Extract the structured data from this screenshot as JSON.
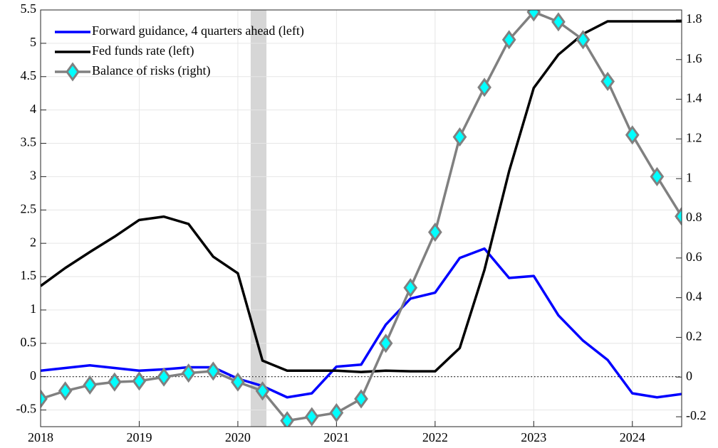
{
  "chart_data": {
    "type": "line",
    "x": [
      2018.0,
      2018.25,
      2018.5,
      2018.75,
      2019.0,
      2019.25,
      2019.5,
      2019.75,
      2020.0,
      2020.25,
      2020.5,
      2020.75,
      2021.0,
      2021.25,
      2021.5,
      2021.75,
      2022.0,
      2022.25,
      2022.5,
      2022.75,
      2023.0,
      2023.25,
      2023.5,
      2023.75,
      2024.0,
      2024.25,
      2024.5
    ],
    "series": [
      {
        "name": "Forward guidance, 4 quarters ahead (left)",
        "color": "#0000ff",
        "axis": "y",
        "values": [
          0.09,
          0.13,
          0.17,
          0.13,
          0.09,
          0.11,
          0.14,
          0.14,
          -0.03,
          -0.14,
          -0.31,
          -0.25,
          0.15,
          0.18,
          0.78,
          1.17,
          1.26,
          1.78,
          1.92,
          1.48,
          1.51,
          0.92,
          0.54,
          0.25,
          -0.25,
          -0.31,
          -0.26
        ]
      },
      {
        "name": "Fed funds rate (left)",
        "color": "#000000",
        "axis": "y",
        "values": [
          1.36,
          1.63,
          1.87,
          2.1,
          2.35,
          2.4,
          2.29,
          1.8,
          1.55,
          0.24,
          0.09,
          0.09,
          0.09,
          0.07,
          0.09,
          0.08,
          0.08,
          0.43,
          1.6,
          3.08,
          4.33,
          4.83,
          5.14,
          5.33,
          5.33,
          5.33,
          5.33
        ]
      },
      {
        "name": "Balance of risks (right)",
        "color": "#808080",
        "marker_color": "#00ffff",
        "axis": "y2",
        "values": [
          -0.11,
          -0.07,
          -0.04,
          -0.025,
          -0.02,
          0.0,
          0.02,
          0.03,
          -0.025,
          -0.07,
          -0.22,
          -0.2,
          -0.18,
          -0.11,
          0.17,
          0.45,
          0.73,
          1.21,
          1.46,
          1.7,
          1.84,
          1.79,
          1.7,
          1.49,
          1.22,
          1.01,
          0.81
        ]
      }
    ],
    "xlim": [
      2018,
      2024.5
    ],
    "xticks": [
      2018,
      2019,
      2020,
      2021,
      2022,
      2023,
      2024
    ],
    "ylim": [
      -0.75,
      5.5
    ],
    "yticks": [
      -0.5,
      0,
      0.5,
      1,
      1.5,
      2,
      2.5,
      3,
      3.5,
      4,
      4.5,
      5,
      5.5
    ],
    "y2lim": [
      -0.25,
      1.85
    ],
    "y2ticks": [
      -0.2,
      0,
      0.2,
      0.4,
      0.6,
      0.8,
      1,
      1.2,
      1.4,
      1.6,
      1.8
    ],
    "shaded_region": [
      2020.13,
      2020.29
    ],
    "hline": 0,
    "grid": true,
    "legend": "upper-left"
  }
}
